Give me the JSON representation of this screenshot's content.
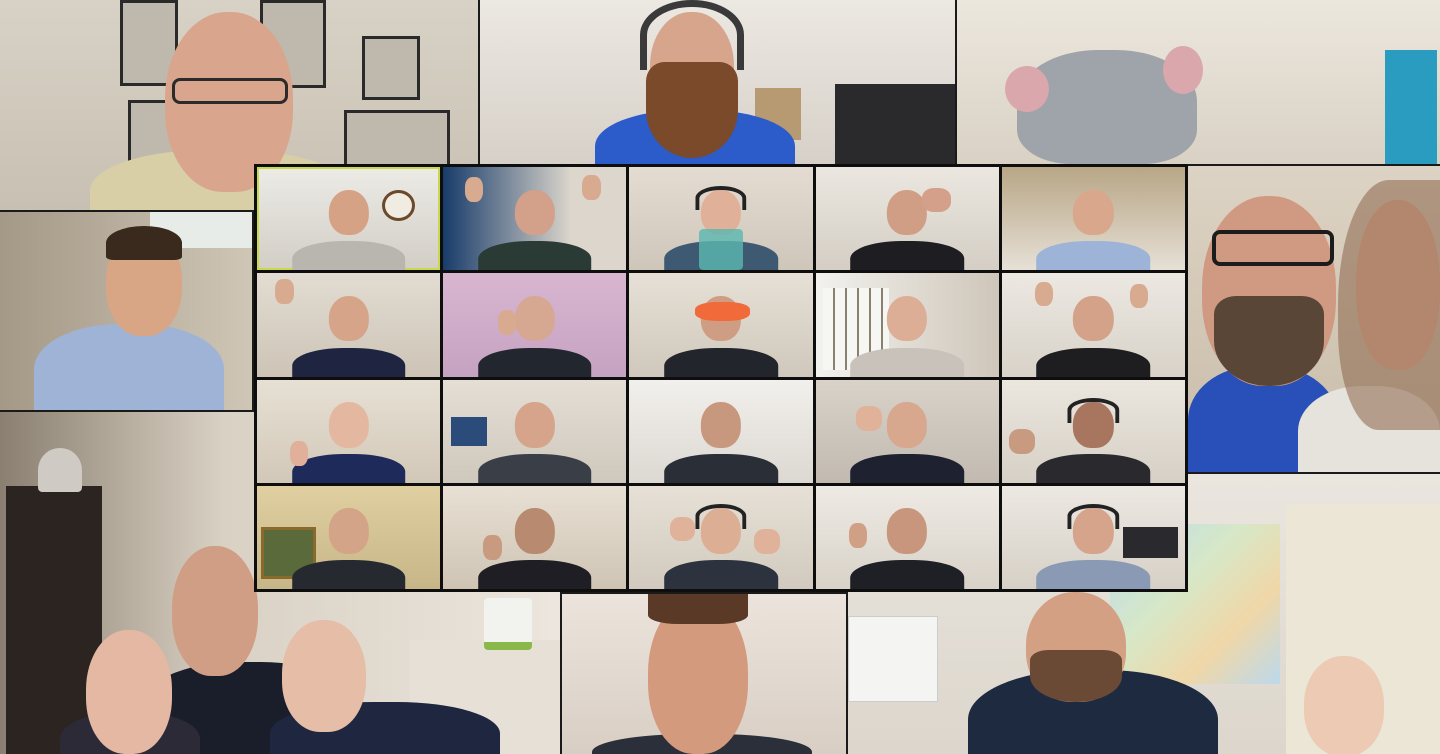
{
  "call": {
    "view_mode": "gallery",
    "participant_count": 29,
    "colors": {
      "active_speaker_border": "#c9d94a",
      "grid_background": "#0e0e0e"
    }
  },
  "outer_tiles": [
    "top-left",
    "top-center",
    "top-right",
    "left-middle",
    "right-middle",
    "bottom-left",
    "bottom-center",
    "bottom-right"
  ],
  "grid": {
    "rows": 4,
    "columns": 5,
    "active_index": 0
  }
}
